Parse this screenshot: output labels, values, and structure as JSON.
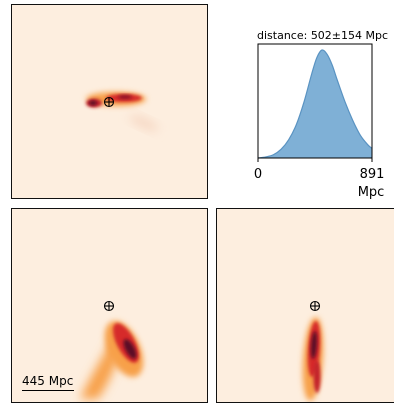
{
  "distance_title": "distance: 502±154 Mpc",
  "scale_bar_label": "445 Mpc",
  "colors": {
    "sky_background": "#fdeedf",
    "histogram_fill": "#7fb0d6",
    "histogram_edge": "#5a93c2",
    "heat_light": "#f7a04a",
    "heat_mid": "#d62c2a",
    "heat_dark": "#5c0828"
  },
  "icons": {
    "earth_marker": "circled-plus-earth-icon"
  },
  "chart_data": {
    "type": "area",
    "title": "distance: 502±154 Mpc",
    "xlabel": "Mpc",
    "ylabel": "",
    "xlim": [
      0,
      891
    ],
    "xtick_labels": [
      "0",
      "891"
    ],
    "mean": 502,
    "std": 154,
    "x": [
      0,
      60,
      120,
      180,
      240,
      300,
      360,
      420,
      460,
      500,
      540,
      580,
      620,
      680,
      740,
      800,
      860,
      891
    ],
    "y": [
      0.0,
      0.01,
      0.03,
      0.08,
      0.17,
      0.31,
      0.52,
      0.78,
      0.93,
      1.0,
      0.96,
      0.86,
      0.72,
      0.52,
      0.35,
      0.21,
      0.12,
      0.09
    ],
    "grid": false
  }
}
